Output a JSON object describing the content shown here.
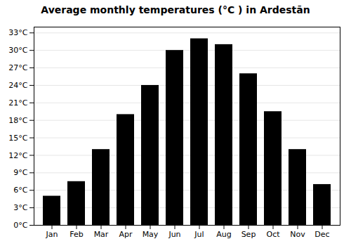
{
  "chart_data": {
    "type": "bar",
    "title": "Average monthly temperatures (°C ) in Ardestān",
    "categories": [
      "Jan",
      "Feb",
      "Mar",
      "Apr",
      "May",
      "Jun",
      "Jul",
      "Aug",
      "Sep",
      "Oct",
      "Nov",
      "Dec"
    ],
    "values": [
      5,
      7.5,
      13,
      19,
      24,
      30,
      32,
      31,
      26,
      19.5,
      13,
      7
    ],
    "ylim": [
      0,
      34
    ],
    "yticks": [
      {
        "value": 0,
        "label": "0°C"
      },
      {
        "value": 3,
        "label": "3°C"
      },
      {
        "value": 6,
        "label": "6°C"
      },
      {
        "value": 9,
        "label": "9°C"
      },
      {
        "value": 12,
        "label": "12°C"
      },
      {
        "value": 15,
        "label": "15°C"
      },
      {
        "value": 18,
        "label": "18°C"
      },
      {
        "value": 21,
        "label": "21°C"
      },
      {
        "value": 24,
        "label": "24°C"
      },
      {
        "value": 27,
        "label": "27°C"
      },
      {
        "value": 30,
        "label": "30°C"
      },
      {
        "value": 33,
        "label": "33°C"
      }
    ],
    "grid": true
  }
}
